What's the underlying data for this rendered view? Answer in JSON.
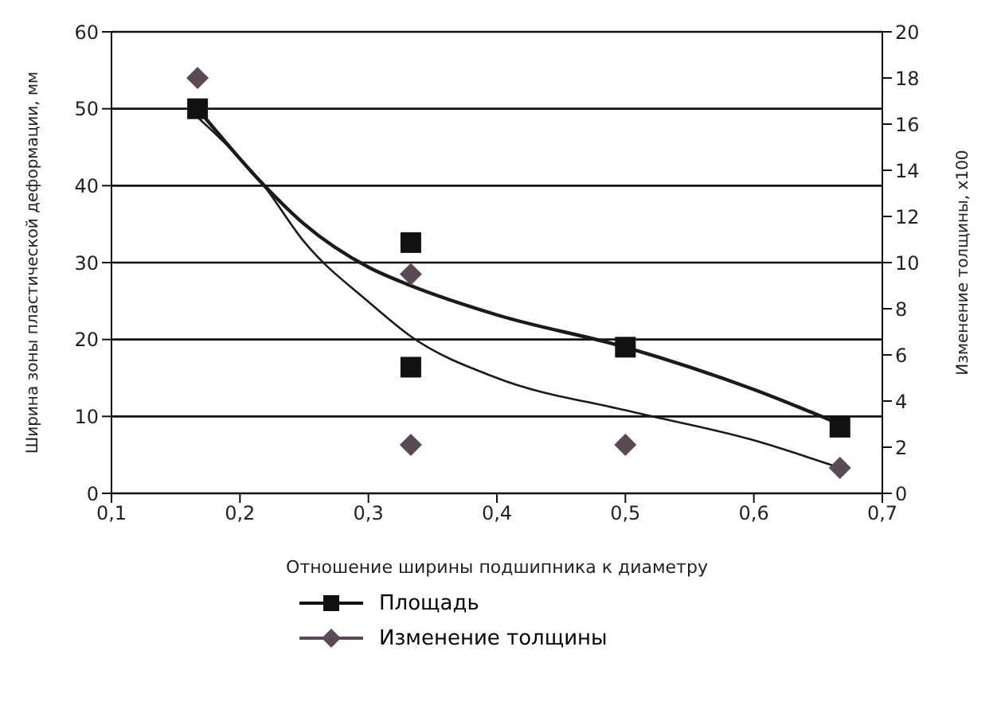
{
  "chart_data": {
    "type": "scatter",
    "xlabel": "Отношение ширины подшипника к диаметру",
    "ylabel": "Ширина зоны пластической деформации, мм",
    "y2label": "Изменение толщины, x100",
    "xlim": [
      0.1,
      0.7
    ],
    "xticks": [
      {
        "value": 0.1,
        "label": "0,1"
      },
      {
        "value": 0.2,
        "label": "0,2"
      },
      {
        "value": 0.3,
        "label": "0,3"
      },
      {
        "value": 0.4,
        "label": "0,4"
      },
      {
        "value": 0.5,
        "label": "0,5"
      },
      {
        "value": 0.6,
        "label": "0,6"
      },
      {
        "value": 0.7,
        "label": "0,7"
      }
    ],
    "ylim": [
      0,
      60
    ],
    "yticks": [
      0,
      10,
      20,
      30,
      40,
      50,
      60
    ],
    "y2lim": [
      0,
      20
    ],
    "y2ticks": [
      0,
      2,
      4,
      6,
      8,
      10,
      12,
      14,
      16,
      18,
      20
    ],
    "grid": "y",
    "legend": "bottom",
    "series": [
      {
        "name": "Площадь",
        "marker": "square",
        "color": "#111111",
        "x": [
          0.167,
          0.333,
          0.333,
          0.5,
          0.667
        ],
        "values": [
          50,
          32.6,
          16.4,
          19,
          8.6
        ]
      },
      {
        "name": "Изменение толщины",
        "marker": "diamond",
        "axis": "y2",
        "color": "#5a4a55",
        "x": [
          0.167,
          0.333,
          0.333,
          0.5,
          0.667
        ],
        "values": [
          18,
          9.5,
          2.1,
          2.1,
          1.1
        ]
      },
      {
        "type": "line",
        "marker": "none",
        "color": "#1a1a1a",
        "x": [
          0.167,
          0.219,
          0.25,
          0.3,
          0.333,
          0.4,
          0.5,
          0.6,
          0.667
        ],
        "values": [
          50,
          40,
          35,
          29.4,
          27,
          23.2,
          19,
          13.5,
          9
        ]
      },
      {
        "type": "line",
        "marker": "none",
        "axis": "y2",
        "color": "#1a1a1a",
        "x": [
          0.167,
          0.219,
          0.25,
          0.3,
          0.333,
          0.4,
          0.5,
          0.6,
          0.667
        ],
        "values": [
          16.3,
          13.3,
          10.9,
          8.3,
          6.8,
          5,
          3.6,
          2.3,
          1.1
        ]
      }
    ]
  }
}
